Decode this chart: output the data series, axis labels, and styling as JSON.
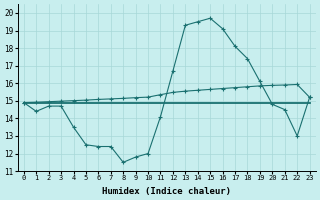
{
  "x": [
    0,
    1,
    2,
    3,
    4,
    5,
    6,
    7,
    8,
    9,
    10,
    11,
    12,
    13,
    14,
    15,
    16,
    17,
    18,
    19,
    20,
    21,
    22,
    23
  ],
  "line_jagged": [
    14.9,
    14.4,
    14.7,
    14.7,
    13.5,
    12.5,
    12.4,
    12.4,
    11.5,
    11.8,
    12.0,
    14.1,
    16.7,
    19.3,
    19.5,
    19.7,
    19.1,
    18.1,
    17.4,
    16.1,
    14.8,
    14.5,
    13.0,
    15.2
  ],
  "line_flat": [
    14.9,
    14.9,
    14.9,
    14.9,
    14.9,
    14.9,
    14.9,
    14.9,
    14.9,
    14.9,
    14.9,
    14.9,
    14.9,
    14.9,
    14.9,
    14.9,
    14.9,
    14.9,
    14.9,
    14.9,
    14.9,
    14.9,
    14.9,
    14.9
  ],
  "line_rising": [
    14.9,
    14.92,
    14.95,
    14.98,
    15.01,
    15.04,
    15.08,
    15.11,
    15.14,
    15.18,
    15.21,
    15.35,
    15.48,
    15.55,
    15.6,
    15.65,
    15.7,
    15.75,
    15.8,
    15.85,
    15.88,
    15.9,
    15.93,
    15.2
  ],
  "bg_color": "#c8eeee",
  "grid_color": "#a8d8d8",
  "line_color": "#1a7070",
  "xlabel": "Humidex (Indice chaleur)",
  "xlim": [
    -0.5,
    23.5
  ],
  "ylim": [
    11.0,
    20.5
  ],
  "yticks": [
    11,
    12,
    13,
    14,
    15,
    16,
    17,
    18,
    19,
    20
  ],
  "xticks": [
    0,
    1,
    2,
    3,
    4,
    5,
    6,
    7,
    8,
    9,
    10,
    11,
    12,
    13,
    14,
    15,
    16,
    17,
    18,
    19,
    20,
    21,
    22,
    23
  ],
  "xticklabels": [
    "0",
    "1",
    "2",
    "3",
    "4",
    "5",
    "6",
    "7",
    "8",
    "9",
    "10",
    "11",
    "12",
    "13",
    "14",
    "15",
    "16",
    "17",
    "18",
    "19",
    "20",
    "21",
    "22",
    "23"
  ]
}
